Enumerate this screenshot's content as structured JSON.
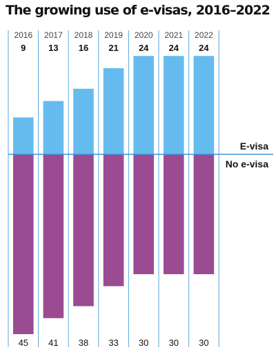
{
  "title": "The growing use of e-visas, 2016–2022",
  "colors": {
    "evisa": "#66BBEE",
    "no_evisa": "#9B4B92",
    "frame": "#5AA9E0",
    "baseline": "#3F93D5"
  },
  "chart_data": {
    "type": "bar",
    "categories": [
      "2016",
      "2017",
      "2018",
      "2019",
      "2020",
      "2021",
      "2022"
    ],
    "series": [
      {
        "name": "E-visa",
        "values": [
          9,
          13,
          16,
          21,
          24,
          24,
          24
        ]
      },
      {
        "name": "No e-visa",
        "values": [
          45,
          41,
          38,
          33,
          30,
          30,
          30
        ]
      }
    ],
    "title": "The growing use of e-visas, 2016–2022",
    "xlabel": "",
    "ylabel": "",
    "grid": false,
    "legend": "right, labels at baseline"
  }
}
